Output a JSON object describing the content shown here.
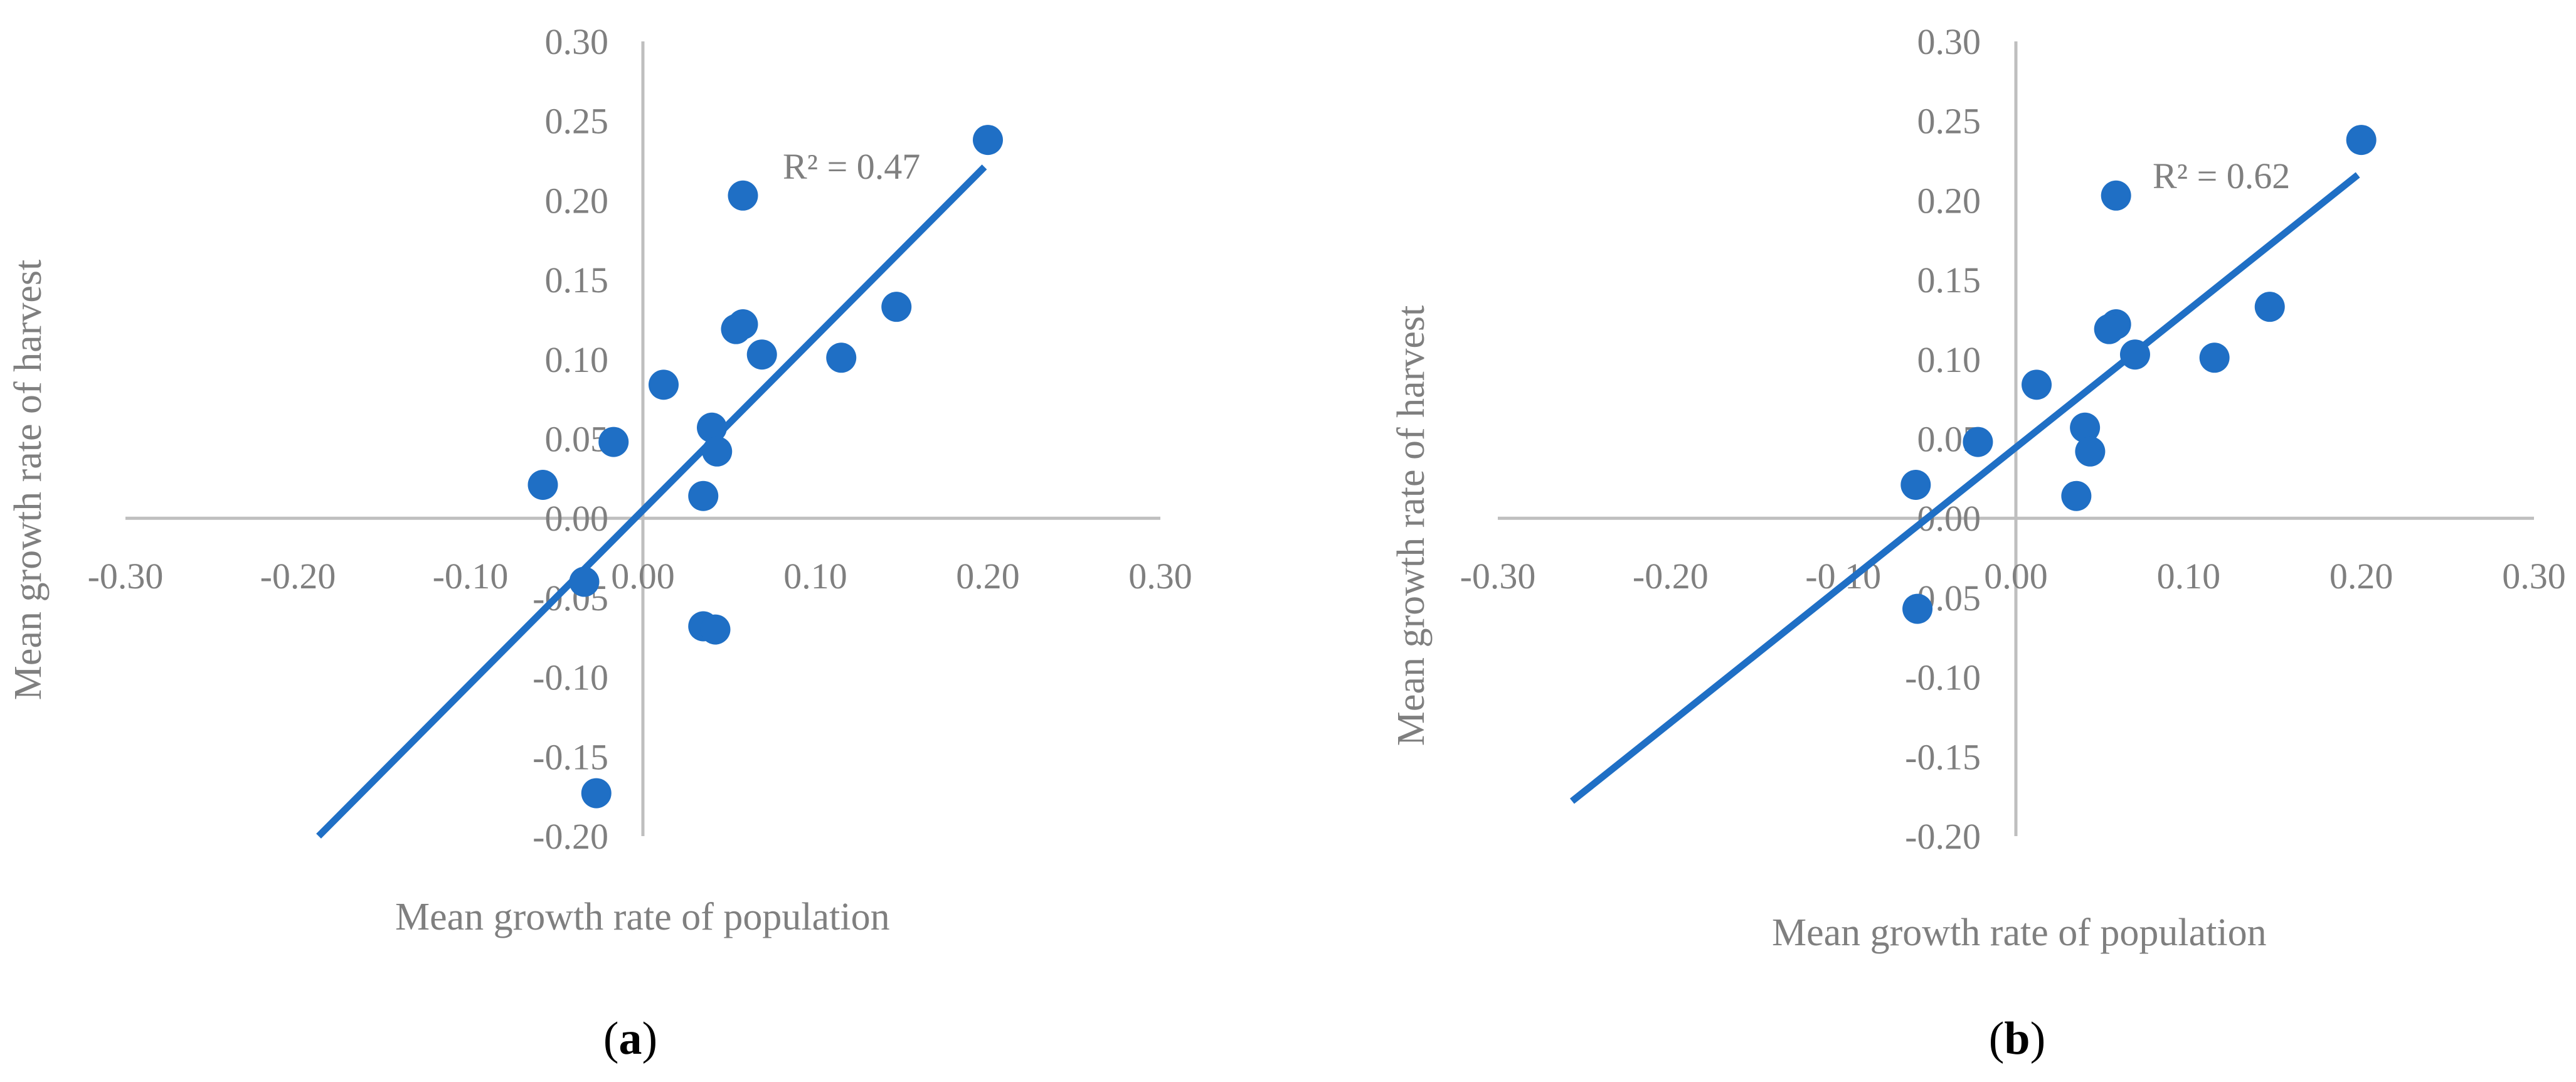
{
  "colors": {
    "series": "#1f6fc5",
    "axis": "#bfbfbf",
    "text": "#7f7f7f",
    "caption": "#000000"
  },
  "chart_data": [
    {
      "type": "scatter",
      "panel": "a",
      "caption": {
        "open": "(",
        "letter": "a",
        "close": ")"
      },
      "xlabel": "Mean growth rate of population",
      "ylabel": "Mean growth rate of harvest",
      "xlim": [
        -0.3,
        0.3
      ],
      "ylim": [
        -0.2,
        0.3
      ],
      "x_ticks": [
        "-0.30",
        "-0.20",
        "-0.10",
        "0.00",
        "0.10",
        "0.20",
        "0.30"
      ],
      "y_ticks": [
        "-0.20",
        "-0.15",
        "-0.10",
        "-0.05",
        "0.00",
        "0.05",
        "0.10",
        "0.15",
        "0.20",
        "0.25",
        "0.30"
      ],
      "annotation": "R² = 0.47",
      "points": [
        {
          "x": 0.2,
          "y": 0.238
        },
        {
          "x": 0.058,
          "y": 0.203
        },
        {
          "x": 0.147,
          "y": 0.133
        },
        {
          "x": 0.058,
          "y": 0.122
        },
        {
          "x": 0.054,
          "y": 0.119
        },
        {
          "x": 0.069,
          "y": 0.103
        },
        {
          "x": 0.115,
          "y": 0.101
        },
        {
          "x": 0.012,
          "y": 0.084
        },
        {
          "x": 0.04,
          "y": 0.057
        },
        {
          "x": 0.043,
          "y": 0.042
        },
        {
          "x": -0.017,
          "y": 0.048
        },
        {
          "x": -0.058,
          "y": 0.021
        },
        {
          "x": 0.035,
          "y": 0.014
        },
        {
          "x": -0.034,
          "y": -0.04
        },
        {
          "x": 0.035,
          "y": -0.068
        },
        {
          "x": 0.042,
          "y": -0.07
        },
        {
          "x": -0.027,
          "y": -0.173
        }
      ],
      "trendline": {
        "x": [
          -0.188,
          0.198
        ],
        "y": [
          -0.2,
          0.221
        ]
      }
    },
    {
      "type": "scatter",
      "panel": "b",
      "caption": {
        "open": "(",
        "letter": "b",
        "close": ")"
      },
      "xlabel": "Mean growth rate of population",
      "ylabel": "Mean growth rate of harvest",
      "xlim": [
        -0.3,
        0.3
      ],
      "ylim": [
        -0.2,
        0.3
      ],
      "x_ticks": [
        "-0.30",
        "-0.20",
        "-0.10",
        "0.00",
        "0.10",
        "0.20",
        "0.30"
      ],
      "y_ticks": [
        "-0.20",
        "-0.15",
        "-0.10",
        "-0.05",
        "0.00",
        "0.05",
        "0.10",
        "0.15",
        "0.20",
        "0.25",
        "0.30"
      ],
      "annotation": "R² = 0.62",
      "points": [
        {
          "x": 0.2,
          "y": 0.238
        },
        {
          "x": 0.058,
          "y": 0.203
        },
        {
          "x": 0.147,
          "y": 0.133
        },
        {
          "x": 0.058,
          "y": 0.122
        },
        {
          "x": 0.054,
          "y": 0.119
        },
        {
          "x": 0.069,
          "y": 0.103
        },
        {
          "x": 0.115,
          "y": 0.101
        },
        {
          "x": 0.012,
          "y": 0.084
        },
        {
          "x": 0.04,
          "y": 0.057
        },
        {
          "x": 0.043,
          "y": 0.042
        },
        {
          "x": -0.022,
          "y": 0.048
        },
        {
          "x": -0.058,
          "y": 0.021
        },
        {
          "x": 0.035,
          "y": 0.014
        },
        {
          "x": -0.057,
          "y": -0.057
        }
      ],
      "trendline": {
        "x": [
          -0.257,
          0.198
        ],
        "y": [
          -0.178,
          0.216
        ]
      }
    }
  ]
}
